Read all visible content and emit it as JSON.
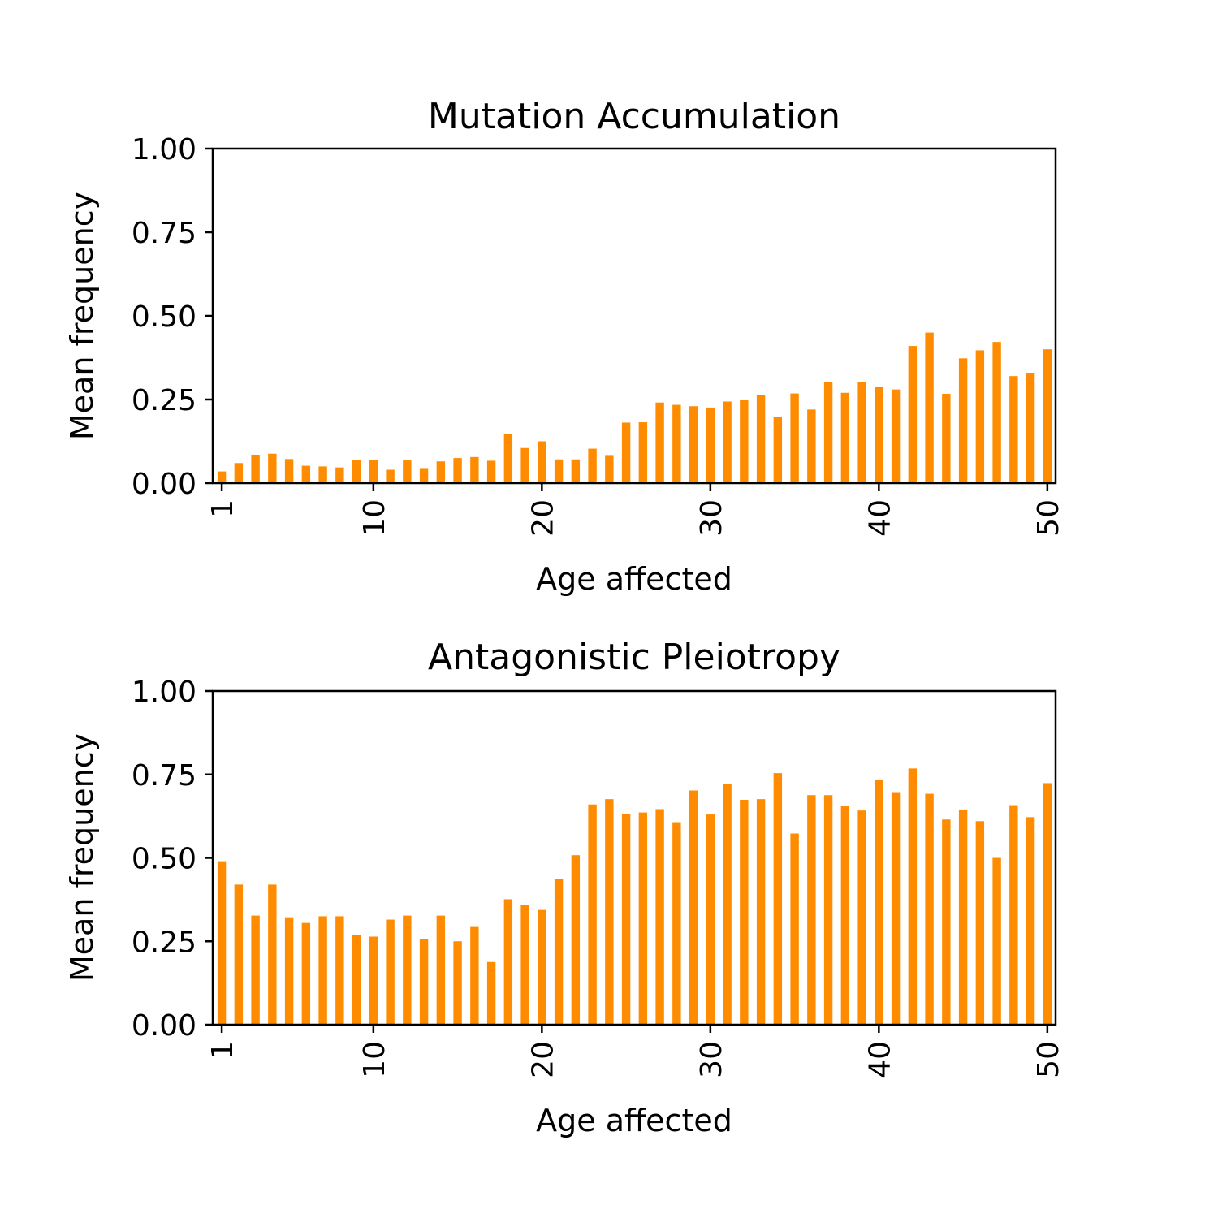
{
  "chart_data": [
    {
      "type": "bar",
      "title": "Mutation Accumulation",
      "xlabel": "Age affected",
      "ylabel": "Mean frequency",
      "ylim": [
        0,
        1
      ],
      "yticks": [
        "0.00",
        "0.25",
        "0.50",
        "0.75",
        "1.00"
      ],
      "xticks": [
        "1",
        "10",
        "20",
        "30",
        "40",
        "50"
      ],
      "grid": false,
      "bar_color": "#ff8c00",
      "categories": [
        1,
        2,
        3,
        4,
        5,
        6,
        7,
        8,
        9,
        10,
        11,
        12,
        13,
        14,
        15,
        16,
        17,
        18,
        19,
        20,
        21,
        22,
        23,
        24,
        25,
        26,
        27,
        28,
        29,
        30,
        31,
        32,
        33,
        34,
        35,
        36,
        37,
        38,
        39,
        40,
        41,
        42,
        43,
        44,
        45,
        46,
        47,
        48,
        49,
        50
      ],
      "values": [
        0.035,
        0.06,
        0.085,
        0.088,
        0.072,
        0.052,
        0.05,
        0.047,
        0.068,
        0.068,
        0.04,
        0.068,
        0.045,
        0.065,
        0.075,
        0.078,
        0.067,
        0.146,
        0.105,
        0.125,
        0.071,
        0.071,
        0.103,
        0.084,
        0.181,
        0.182,
        0.241,
        0.234,
        0.23,
        0.226,
        0.244,
        0.25,
        0.263,
        0.198,
        0.268,
        0.22,
        0.303,
        0.27,
        0.302,
        0.287,
        0.28,
        0.41,
        0.45,
        0.267,
        0.373,
        0.397,
        0.422,
        0.32,
        0.33,
        0.4
      ]
    },
    {
      "type": "bar",
      "title": "Antagonistic Pleiotropy",
      "xlabel": "Age affected",
      "ylabel": "Mean frequency",
      "ylim": [
        0,
        1
      ],
      "yticks": [
        "0.00",
        "0.25",
        "0.50",
        "0.75",
        "1.00"
      ],
      "xticks": [
        "1",
        "10",
        "20",
        "30",
        "40",
        "50"
      ],
      "grid": false,
      "bar_color": "#ff8c00",
      "categories": [
        1,
        2,
        3,
        4,
        5,
        6,
        7,
        8,
        9,
        10,
        11,
        12,
        13,
        14,
        15,
        16,
        17,
        18,
        19,
        20,
        21,
        22,
        23,
        24,
        25,
        26,
        27,
        28,
        29,
        30,
        31,
        32,
        33,
        34,
        35,
        36,
        37,
        38,
        39,
        40,
        41,
        42,
        43,
        44,
        45,
        46,
        47,
        48,
        49,
        50
      ],
      "values": [
        0.49,
        0.42,
        0.327,
        0.42,
        0.322,
        0.305,
        0.325,
        0.325,
        0.27,
        0.264,
        0.315,
        0.327,
        0.256,
        0.327,
        0.25,
        0.293,
        0.188,
        0.376,
        0.36,
        0.344,
        0.436,
        0.508,
        0.66,
        0.676,
        0.632,
        0.636,
        0.646,
        0.607,
        0.702,
        0.63,
        0.722,
        0.674,
        0.676,
        0.754,
        0.573,
        0.688,
        0.688,
        0.656,
        0.642,
        0.735,
        0.697,
        0.768,
        0.692,
        0.615,
        0.645,
        0.61,
        0.5,
        0.658,
        0.622,
        0.724
      ]
    }
  ]
}
